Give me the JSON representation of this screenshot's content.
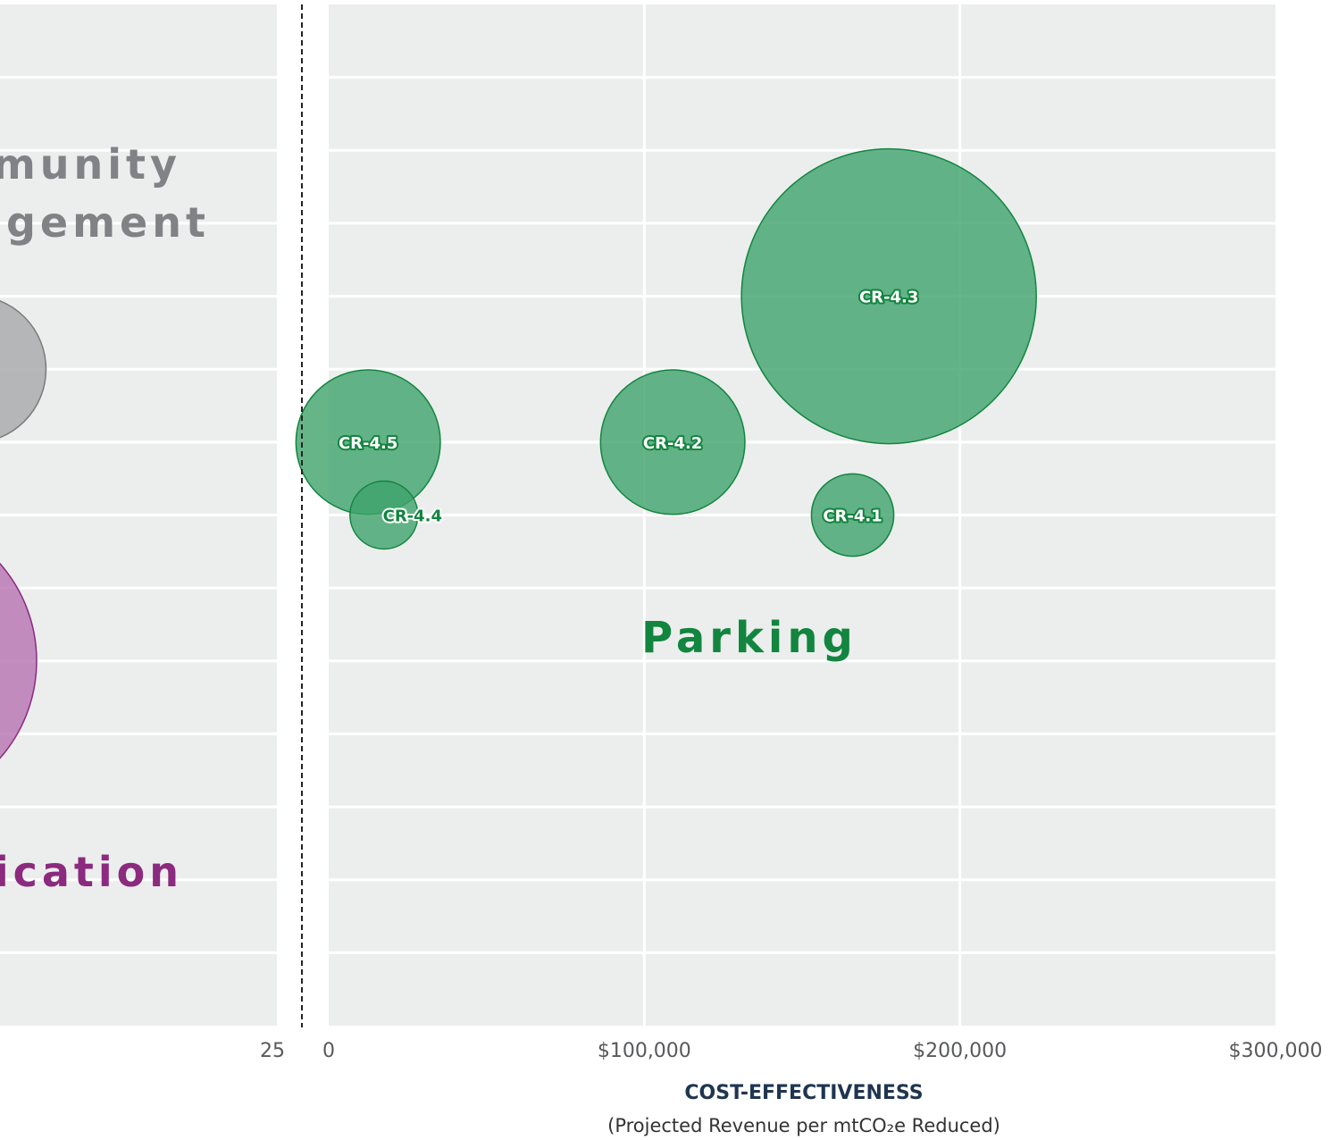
{
  "chart_data": [
    {
      "type": "bubble",
      "annotations": [
        "munity",
        "ngement",
        "ication"
      ],
      "x": [
        14,
        11
      ],
      "y": [
        9,
        5
      ],
      "sizes": [
        25,
        100
      ],
      "colors": [
        "#a7a8aa",
        "#b872b2"
      ],
      "edge_colors": [
        "#7a7b7d",
        "#8b2a80"
      ],
      "xlim": [
        0,
        25
      ],
      "xticks": [
        25
      ],
      "ylim": [
        0,
        14
      ],
      "yticks": [
        1,
        2,
        3,
        4,
        5,
        6,
        7,
        8,
        9,
        10,
        11,
        12,
        13
      ],
      "grid": true
    },
    {
      "type": "bubble",
      "xlabel": "COST-EFFECTIVENESS",
      "subtitle": "(Projected Revenue per mtCO₂e Reduced)",
      "annotations": [
        "Parking"
      ],
      "labels": [
        "CR-4.5",
        "CR-4.4",
        "CR-4.2",
        "CR-4.1",
        "CR-4.3"
      ],
      "x": [
        12500,
        17500,
        109000,
        166000,
        177500
      ],
      "y": [
        8,
        7,
        8,
        7,
        10
      ],
      "sizes": [
        24,
        5.3,
        24,
        7.8,
        100
      ],
      "color": "#3fa36c",
      "edge_color": "#12853f",
      "xlim": [
        0,
        300000
      ],
      "xticks": [
        0,
        {
          "value": 100000,
          "label": "$100,000"
        },
        {
          "value": 200000,
          "label": "$200,000"
        },
        {
          "value": 300000,
          "label": "$300,000"
        }
      ],
      "ylim": [
        0,
        14
      ],
      "yticks": [
        1,
        2,
        3,
        4,
        5,
        6,
        7,
        8,
        9,
        10,
        11,
        12,
        13
      ],
      "grid": true
    }
  ]
}
